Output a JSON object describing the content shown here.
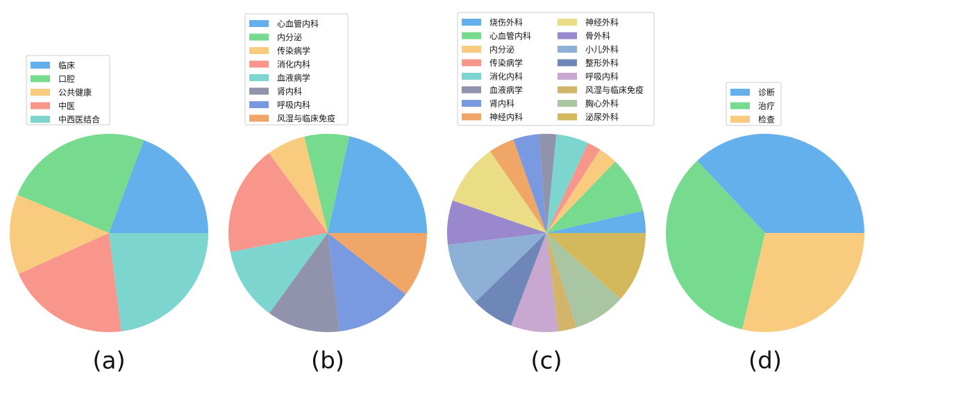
{
  "palette": [
    "#63b0ec",
    "#77db8f",
    "#f8cb7f",
    "#f8968b",
    "#7cd5cf",
    "#9192ab",
    "#7999e1",
    "#efa666",
    "#ebdd86",
    "#9988cd",
    "#8fb0d6",
    "#6e86b8",
    "#c8a7d1",
    "#d2b46b",
    "#a9c6a3",
    "#d3b95b"
  ],
  "chart_data": [
    {
      "type": "pie",
      "caption": "(a)",
      "categories": [
        "临床",
        "口腔",
        "公共健康",
        "中医",
        "中西医结合"
      ],
      "values": [
        19.3,
        24.4,
        13.1,
        20.2,
        23.0
      ],
      "start_angle_deg": 0,
      "direction": "counterclockwise",
      "legend_position": "above"
    },
    {
      "type": "pie",
      "caption": "(b)",
      "categories": [
        "心血管内科",
        "内分泌",
        "传染病学",
        "消化内科",
        "血液病学",
        "肾内科",
        "呼吸内科",
        "风湿与临床免疫"
      ],
      "values": [
        21.5,
        7.3,
        6.3,
        18.0,
        11.9,
        11.9,
        12.5,
        10.6
      ],
      "start_angle_deg": 0,
      "direction": "counterclockwise",
      "legend_position": "above"
    },
    {
      "type": "pie",
      "caption": "(c)",
      "categories": [
        "烧伤外科",
        "心血管内科",
        "内分泌",
        "传染病学",
        "消化内科",
        "血液病学",
        "肾内科",
        "神经内科",
        "神经外科",
        "骨外科",
        "小儿外科",
        "整形外科",
        "呼吸内科",
        "风湿与临床免疫",
        "胸心外科",
        "泌尿外科"
      ],
      "values": [
        3.6,
        9.2,
        3.1,
        2.2,
        5.3,
        2.8,
        4.2,
        4.2,
        10.1,
        7.2,
        10.4,
        6.9,
        7.7,
        3.0,
        8.5,
        11.6
      ],
      "start_angle_deg": 0,
      "direction": "counterclockwise",
      "legend_position": "above",
      "legend_columns": 2
    },
    {
      "type": "pie",
      "caption": "(d)",
      "categories": [
        "诊断",
        "治疗",
        "检查"
      ],
      "values": [
        37.0,
        34.3,
        28.7
      ],
      "start_angle_deg": 0,
      "direction": "counterclockwise",
      "legend_position": "above"
    }
  ]
}
